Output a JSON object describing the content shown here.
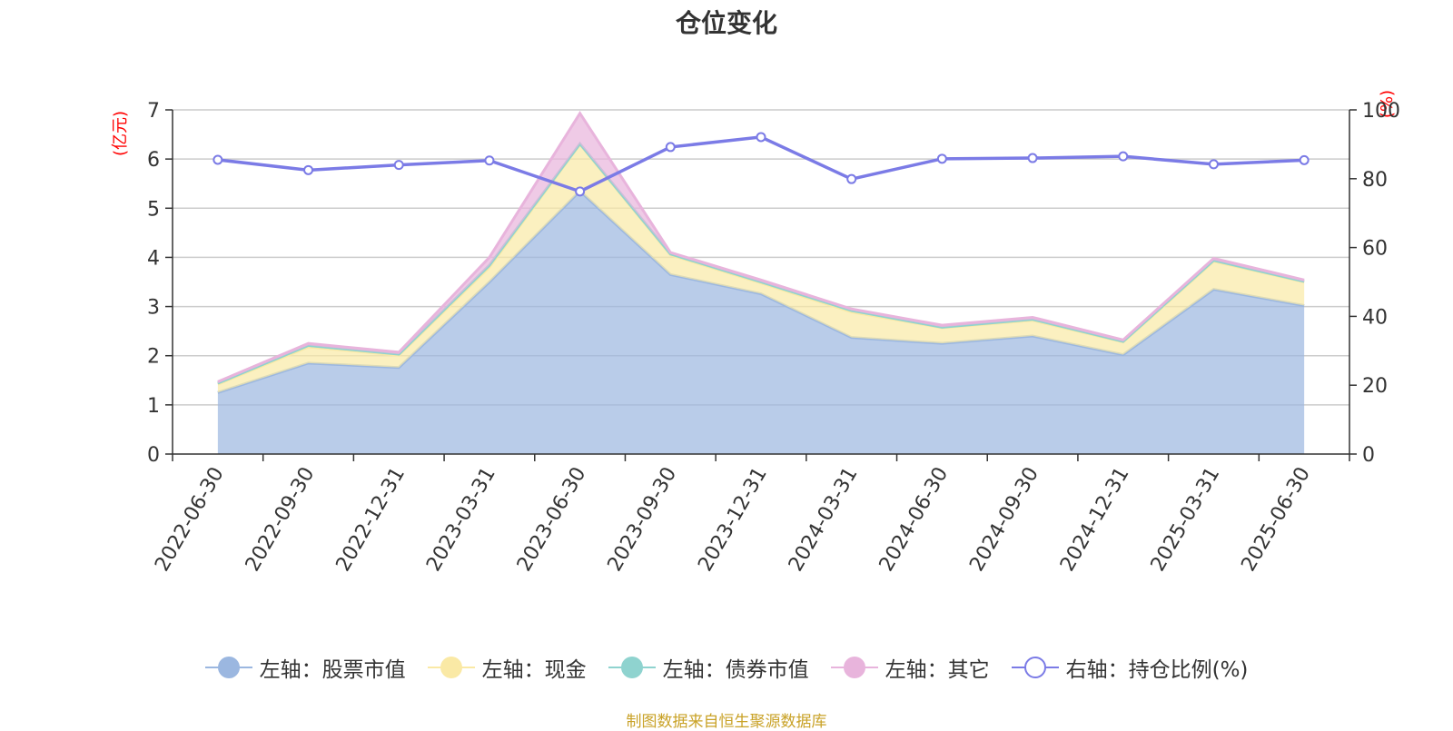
{
  "chart_data": {
    "type": "area",
    "title": "仓位变化",
    "left_unit": "(亿元)",
    "right_unit": "(%)",
    "categories": [
      "2022-06-30",
      "2022-09-30",
      "2022-12-31",
      "2023-03-31",
      "2023-06-30",
      "2023-09-30",
      "2023-12-31",
      "2024-03-31",
      "2024-06-30",
      "2024-09-30",
      "2024-12-31",
      "2025-03-31",
      "2025-06-30"
    ],
    "left_ylim": [
      0,
      7
    ],
    "left_ticks": [
      0,
      1,
      2,
      3,
      4,
      5,
      6,
      7
    ],
    "right_ylim": [
      0,
      100
    ],
    "right_ticks": [
      0,
      20,
      40,
      60,
      80,
      100
    ],
    "grid": true,
    "series": [
      {
        "name": "左轴：股票市值",
        "axis": "left",
        "stack": true,
        "color": "#9bb7e0",
        "values": [
          1.25,
          1.85,
          1.76,
          3.5,
          5.35,
          3.65,
          3.26,
          2.37,
          2.25,
          2.4,
          2.02,
          3.35,
          3.02
        ]
      },
      {
        "name": "左轴：现金",
        "axis": "left",
        "stack": true,
        "color": "#fae9a5",
        "values": [
          0.17,
          0.33,
          0.25,
          0.3,
          0.95,
          0.4,
          0.22,
          0.52,
          0.32,
          0.32,
          0.26,
          0.57,
          0.48
        ]
      },
      {
        "name": "左轴：债券市值",
        "axis": "left",
        "stack": true,
        "color": "#8fd3cf",
        "values": [
          0.02,
          0.03,
          0.02,
          0.04,
          0.01,
          0.02,
          0.02,
          0.03,
          0.01,
          0.02,
          0.01,
          0.02,
          0.01
        ]
      },
      {
        "name": "左轴：其它",
        "axis": "left",
        "stack": true,
        "color": "#e8b4dc",
        "values": [
          0.03,
          0.04,
          0.04,
          0.16,
          0.62,
          0.03,
          0.04,
          0.03,
          0.04,
          0.04,
          0.03,
          0.04,
          0.03
        ]
      },
      {
        "name": "右轴：持仓比例(%)",
        "axis": "right",
        "stack": false,
        "color": "#7b7be6",
        "values": [
          85.5,
          82.5,
          84.0,
          85.3,
          76.3,
          89.2,
          92.1,
          79.9,
          85.8,
          86.0,
          86.5,
          84.2,
          85.4
        ]
      }
    ]
  },
  "source_text": "制图数据来自恒生聚源数据库"
}
